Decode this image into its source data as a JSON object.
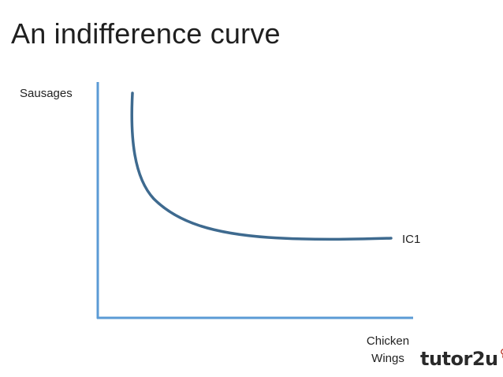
{
  "title": "An indifference curve",
  "diagram": {
    "y_axis_label": "Sausages",
    "x_axis_label_line1": "Chicken",
    "x_axis_label_line2": "Wings",
    "curve_label": "IC1",
    "axis_color": "#5b9bd5",
    "curve_color": "#3e6a8f"
  },
  "logo": {
    "text": "tutor2u",
    "text_color": "#2a2a2a",
    "mark_color": "#c0392b"
  }
}
